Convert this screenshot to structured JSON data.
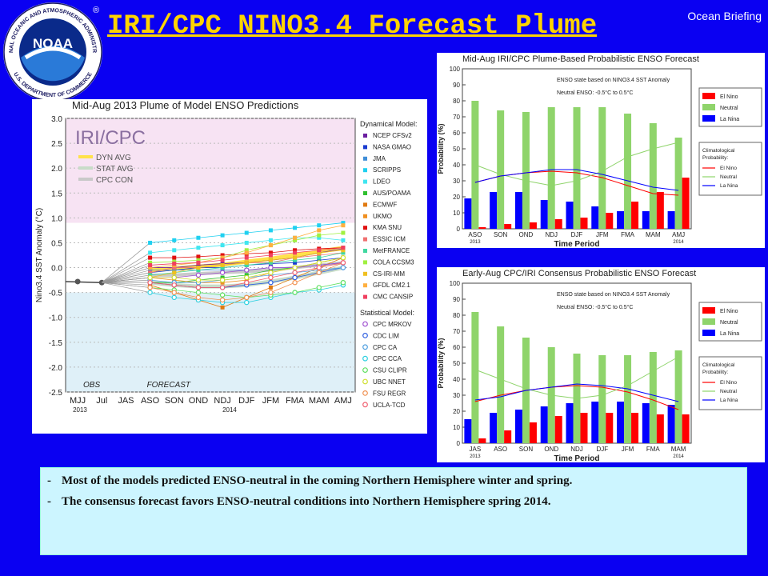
{
  "header": {
    "title": "IRI/CPC NINO3.4 Forecast Plume",
    "briefing": "Ocean Briefing",
    "logo": {
      "center_text": "NOAA",
      "ring_text": "NATIONAL OCEANIC AND ATMOSPHERIC ADMINISTRATION",
      "bottom_text": "U.S. DEPARTMENT OF COMMERCE",
      "registered": "®"
    }
  },
  "bullets": [
    {
      "dash": "-",
      "text": "Most of the models predicted ENSO-neutral in the coming Northern Hemisphere winter and spring."
    },
    {
      "dash": "-",
      "text": "The consensus forecast favors ENSO-neutral conditions into  Northern Hemisphere spring 2014."
    }
  ],
  "chart_data": [
    {
      "type": "line",
      "title": "Mid-Aug 2013 Plume of Model ENSO Predictions",
      "ylabel": "Nino3.4 SST Anomaly (°C)",
      "ylim": [
        -2.5,
        3.0
      ],
      "y_ticks": [
        "3.0",
        "2.5",
        "2.0",
        "1.5",
        "1.0",
        "0.5",
        "0.0",
        "-0.5",
        "-1.0",
        "-1.5",
        "-2.0",
        "-2.5"
      ],
      "categories": [
        "MJJ",
        "Jul",
        "JAS",
        "ASO",
        "SON",
        "OND",
        "NDJ",
        "DJF",
        "JFM",
        "FMA",
        "MAM",
        "AMJ"
      ],
      "year_labels": [
        "2013",
        "2014"
      ],
      "watermark": "IRI/CPC",
      "obs_label": "OBS",
      "forecast_label": "FORECAST",
      "observed": [
        -0.28,
        -0.3
      ],
      "avg_legend": [
        {
          "name": "DYN AVG",
          "color": "#ffe24a"
        },
        {
          "name": "STAT AVG",
          "color": "#c8dcc8"
        },
        {
          "name": "CPC CON",
          "color": "#c9c9c9"
        }
      ],
      "dynamical_heading": "Dynamical Model:",
      "statistical_heading": "Statistical Model:",
      "dynamical_models": [
        {
          "name": "NCEP CFSv2",
          "color": "#6b1fa0",
          "values": [
            0.0,
            0.0,
            0.05,
            0.08,
            0.1,
            0.15,
            0.2,
            0.3,
            0.38
          ]
        },
        {
          "name": "NASA GMAO",
          "color": "#1a3bd0",
          "values": [
            -0.1,
            -0.05,
            0.0,
            0.0,
            0.05,
            0.08,
            0.1,
            0.15,
            0.2
          ]
        },
        {
          "name": "JMA",
          "color": "#3f8ed8",
          "values": [
            -0.05,
            -0.05,
            -0.05,
            -0.05,
            -0.05,
            0.0,
            0.0,
            0.05,
            0.1
          ]
        },
        {
          "name": "SCRIPPS",
          "color": "#20d0f0",
          "values": [
            0.5,
            0.55,
            0.6,
            0.65,
            0.7,
            0.75,
            0.8,
            0.85,
            0.9
          ]
        },
        {
          "name": "LDEO",
          "color": "#40e6f0",
          "values": [
            0.3,
            0.35,
            0.4,
            0.45,
            0.5,
            0.55,
            0.6,
            0.6,
            0.55
          ]
        },
        {
          "name": "AUS/POAMA",
          "color": "#30c030",
          "values": [
            -0.3,
            -0.3,
            -0.25,
            -0.2,
            -0.15,
            -0.05,
            0.0,
            0.1,
            0.2
          ]
        },
        {
          "name": "ECMWF",
          "color": "#e07a10",
          "values": [
            -0.35,
            -0.5,
            -0.65,
            -0.8,
            -0.6,
            -0.4,
            -0.2,
            0.0,
            0.2
          ]
        },
        {
          "name": "UKMO",
          "color": "#f09020",
          "values": [
            -0.2,
            -0.25,
            -0.3,
            -0.3,
            -0.25,
            -0.1,
            0.0,
            0.1,
            0.2
          ]
        },
        {
          "name": "KMA SNU",
          "color": "#e01010",
          "values": [
            0.2,
            0.2,
            0.22,
            0.25,
            0.28,
            0.3,
            0.35,
            0.38,
            0.4
          ]
        },
        {
          "name": "ESSIC ICM",
          "color": "#f07070",
          "values": [
            -0.1,
            0.0,
            0.0,
            0.05,
            0.1,
            0.1,
            0.2,
            0.25,
            0.3
          ]
        },
        {
          "name": "MetFRANCE",
          "color": "#40d8a0",
          "values": [
            -0.15,
            -0.1,
            -0.05,
            0.0,
            0.05,
            0.1,
            0.15,
            0.2,
            0.3
          ]
        },
        {
          "name": "COLA CCSM3",
          "color": "#a0f040",
          "values": [
            0.1,
            0.12,
            0.15,
            0.2,
            0.35,
            0.45,
            0.55,
            0.65,
            0.7
          ]
        },
        {
          "name": "CS-IRI-MM",
          "color": "#f0c020",
          "values": [
            -0.2,
            -0.1,
            0.0,
            0.05,
            0.1,
            0.15,
            0.2,
            0.3,
            0.35
          ]
        },
        {
          "name": "GFDL CM2.1",
          "color": "#ffb040",
          "values": [
            0.0,
            0.05,
            0.1,
            0.2,
            0.3,
            0.45,
            0.6,
            0.75,
            0.85
          ]
        },
        {
          "name": "CMC CANSIP",
          "color": "#f04060",
          "values": [
            0.05,
            0.08,
            0.1,
            0.15,
            0.2,
            0.25,
            0.3,
            0.35,
            0.4
          ]
        }
      ],
      "statistical_models": [
        {
          "name": "CPC MRKOV",
          "color": "#a050d0",
          "values": [
            -0.2,
            -0.2,
            -0.15,
            -0.1,
            -0.05,
            0.0,
            0.0,
            0.05,
            0.1
          ]
        },
        {
          "name": "CDC LIM",
          "color": "#3060e0",
          "values": [
            -0.3,
            -0.35,
            -0.4,
            -0.4,
            -0.35,
            -0.3,
            -0.2,
            -0.1,
            0.0
          ]
        },
        {
          "name": "CPC CA",
          "color": "#50a0e0",
          "values": [
            -0.25,
            -0.3,
            -0.3,
            -0.25,
            -0.2,
            -0.15,
            -0.1,
            -0.05,
            0.0
          ]
        },
        {
          "name": "CPC CCA",
          "color": "#30d0e0",
          "values": [
            -0.5,
            -0.6,
            -0.65,
            -0.7,
            -0.7,
            -0.6,
            -0.5,
            -0.45,
            -0.35
          ]
        },
        {
          "name": "CSU CLIPR",
          "color": "#60e060",
          "values": [
            -0.4,
            -0.45,
            -0.5,
            -0.55,
            -0.6,
            -0.55,
            -0.5,
            -0.4,
            -0.3
          ]
        },
        {
          "name": "UBC NNET",
          "color": "#d0e030",
          "values": [
            -0.2,
            -0.2,
            -0.25,
            -0.25,
            -0.2,
            -0.1,
            0.0,
            0.1,
            0.2
          ]
        },
        {
          "name": "FSU REGR",
          "color": "#f09050",
          "values": [
            -0.4,
            -0.5,
            -0.6,
            -0.65,
            -0.6,
            -0.5,
            -0.3,
            -0.1,
            0.1
          ]
        },
        {
          "name": "UCLA-TCD",
          "color": "#f06070",
          "values": [
            -0.3,
            -0.35,
            -0.4,
            -0.4,
            -0.3,
            -0.2,
            -0.1,
            0.0,
            0.1
          ]
        }
      ],
      "dyn_avg": [
        -0.05,
        -0.02,
        0.02,
        0.06,
        0.12,
        0.18,
        0.25,
        0.32,
        0.4
      ],
      "stat_avg": [
        -0.3,
        -0.35,
        -0.38,
        -0.38,
        -0.35,
        -0.28,
        -0.2,
        -0.1,
        0.0
      ],
      "cpc_con": [
        -0.15,
        -0.15,
        -0.12,
        -0.1,
        -0.08,
        -0.05,
        0.0,
        0.05,
        0.1
      ]
    },
    {
      "type": "bar",
      "title": "Mid-Aug IRI/CPC Plume-Based Probabilistic ENSO Forecast",
      "xlabel": "Time Period",
      "ylabel": "Probability (%)",
      "ylim": [
        0,
        100
      ],
      "y_ticks": [
        "0",
        "10",
        "20",
        "30",
        "40",
        "50",
        "60",
        "70",
        "80",
        "90",
        "100"
      ],
      "categories": [
        "ASO",
        "SON",
        "OND",
        "NDJ",
        "DJF",
        "JFM",
        "FMA",
        "MAM",
        "AMJ"
      ],
      "year_labels": [
        "2013",
        "2014"
      ],
      "info_line1": "ENSO state based on NINO3.4 SST Anomaly",
      "info_line2": "Neutral ENSO: -0.5°C to 0.5°C",
      "series": [
        {
          "name": "El Nino",
          "color": "#ff0000",
          "values": [
            1,
            3,
            4,
            6,
            7,
            10,
            17,
            23,
            32
          ]
        },
        {
          "name": "Neutral",
          "color": "#8fd46b",
          "values": [
            80,
            74,
            73,
            76,
            76,
            76,
            72,
            66,
            57
          ]
        },
        {
          "name": "La Nina",
          "color": "#0000ff",
          "values": [
            19,
            23,
            23,
            18,
            17,
            14,
            11,
            11,
            11
          ]
        }
      ],
      "clim_heading": [
        "Climatological",
        "Probability:"
      ],
      "climatology": [
        {
          "name": "El Nino",
          "color": "#ff0000",
          "values": [
            29,
            33,
            35,
            36,
            35,
            32,
            27,
            22,
            21
          ]
        },
        {
          "name": "Neutral",
          "color": "#8fd46b",
          "values": [
            40,
            34,
            30,
            27,
            30,
            36,
            45,
            50,
            54
          ]
        },
        {
          "name": "La Nina",
          "color": "#0000ff",
          "values": [
            29,
            33,
            35,
            37,
            37,
            34,
            30,
            26,
            24
          ]
        }
      ]
    },
    {
      "type": "bar",
      "title": "Early-Aug CPC/IRI Consensus Probabilistic ENSO Forecast",
      "xlabel": "Time Period",
      "ylabel": "Probability (%)",
      "ylim": [
        0,
        100
      ],
      "y_ticks": [
        "0",
        "10",
        "20",
        "30",
        "40",
        "50",
        "60",
        "70",
        "80",
        "90",
        "100"
      ],
      "categories": [
        "JAS",
        "ASO",
        "SON",
        "OND",
        "NDJ",
        "DJF",
        "JFM",
        "FMA",
        "MAM"
      ],
      "year_labels": [
        "2013",
        "2014"
      ],
      "info_line1": "ENSO state based on NINO3.4 SST Anomaly",
      "info_line2": "Neutral ENSO: -0.5°C to 0.5°C",
      "series": [
        {
          "name": "El Nino",
          "color": "#ff0000",
          "values": [
            3,
            8,
            13,
            17,
            19,
            19,
            19,
            18,
            18
          ]
        },
        {
          "name": "Neutral",
          "color": "#8fd46b",
          "values": [
            82,
            73,
            66,
            60,
            56,
            55,
            55,
            57,
            58
          ]
        },
        {
          "name": "La Nina",
          "color": "#0000ff",
          "values": [
            15,
            19,
            21,
            23,
            25,
            26,
            26,
            25,
            24
          ]
        }
      ],
      "clim_heading": [
        "Climatological",
        "Probability:"
      ],
      "climatology": [
        {
          "name": "El Nino",
          "color": "#ff0000",
          "values": [
            26,
            30,
            33,
            35,
            36,
            35,
            32,
            27,
            21
          ]
        },
        {
          "name": "Neutral",
          "color": "#8fd46b",
          "values": [
            46,
            40,
            34,
            30,
            28,
            30,
            36,
            45,
            54
          ]
        },
        {
          "name": "La Nina",
          "color": "#0000ff",
          "values": [
            27,
            29,
            33,
            35,
            37,
            36,
            34,
            30,
            26
          ]
        }
      ]
    }
  ]
}
